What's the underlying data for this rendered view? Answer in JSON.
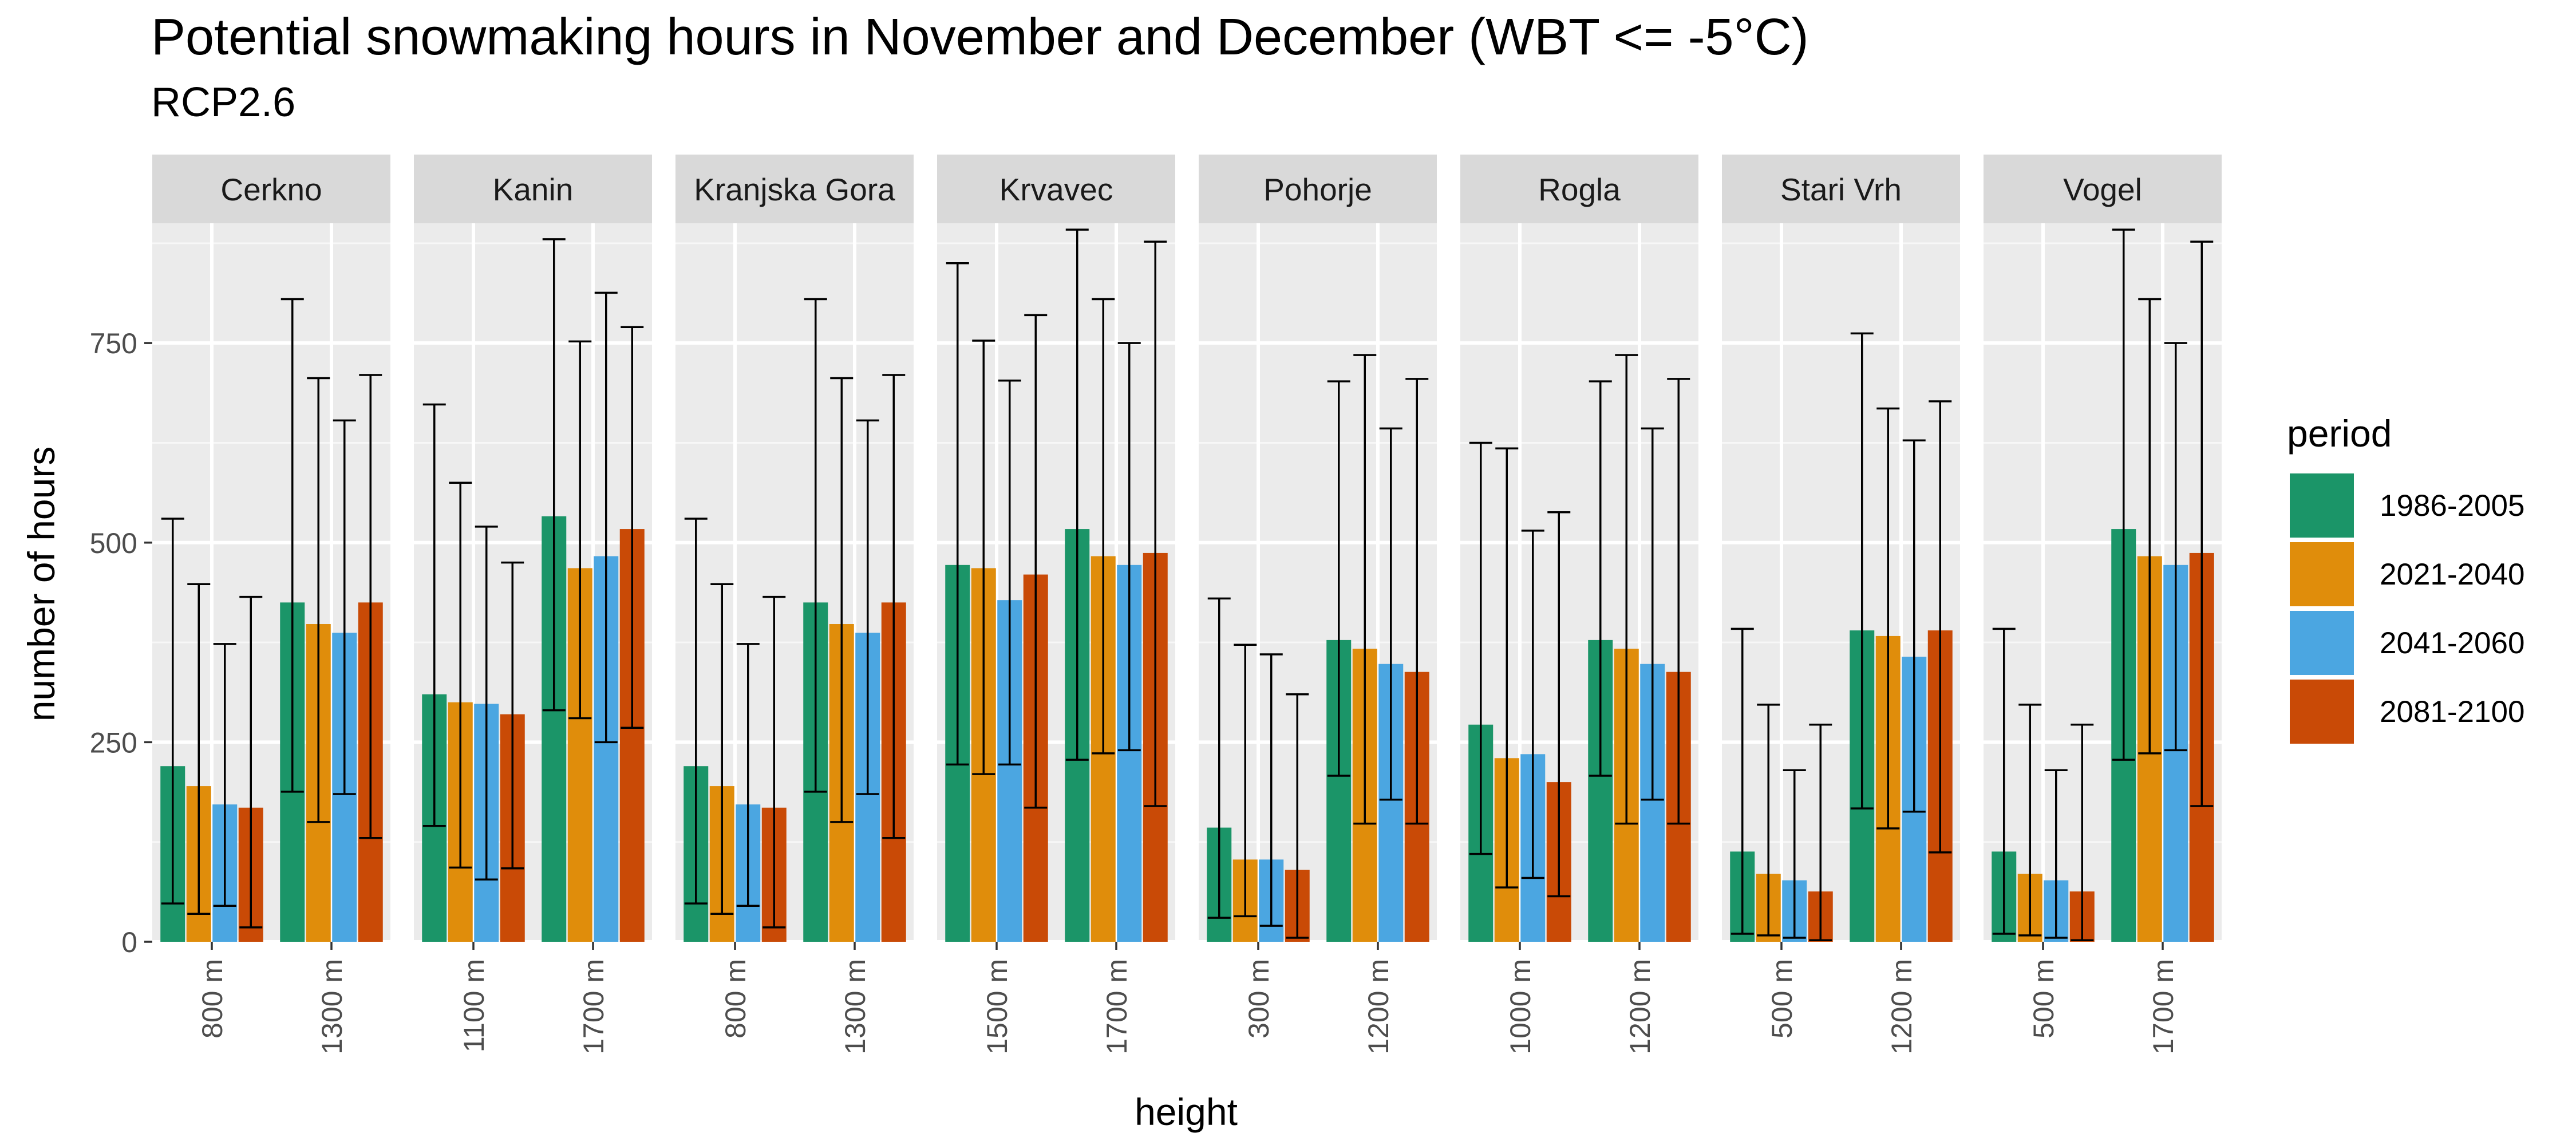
{
  "chart_data": {
    "type": "bar",
    "title": "Potential snowmaking hours in November and December (WBT <= -5°C)",
    "subtitle": "RCP2.6",
    "xlabel": "height",
    "ylabel": "number of hours",
    "ylim": [
      0,
      900
    ],
    "yticks": [
      0,
      250,
      500,
      750
    ],
    "grid": true,
    "legend": {
      "title": "period",
      "position": "right",
      "entries": [
        {
          "label": "1986-2005",
          "color": "#1B9568"
        },
        {
          "label": "2021-2040",
          "color": "#E08D0B"
        },
        {
          "label": "2041-2060",
          "color": "#4BA6E1"
        },
        {
          "label": "2081-2100",
          "color": "#C94A06"
        }
      ]
    },
    "facets": [
      {
        "name": "Cerkno",
        "groups": [
          {
            "height": "800 m",
            "values": [
              220,
              195,
              172,
              168
            ],
            "errors": [
              [
                48,
                530
              ],
              [
                35,
                448
              ],
              [
                45,
                373
              ],
              [
                18,
                432
              ]
            ]
          },
          {
            "height": "1300 m",
            "values": [
              425,
              398,
              387,
              425
            ],
            "errors": [
              [
                188,
                805
              ],
              [
                150,
                706
              ],
              [
                185,
                653
              ],
              [
                130,
                710
              ]
            ]
          }
        ]
      },
      {
        "name": "Kanin",
        "groups": [
          {
            "height": "1100 m",
            "values": [
              310,
              300,
              298,
              285
            ],
            "errors": [
              [
                145,
                673
              ],
              [
                93,
                575
              ],
              [
                78,
                520
              ],
              [
                92,
                475
              ]
            ]
          },
          {
            "height": "1700 m",
            "values": [
              533,
              468,
              483,
              517
            ],
            "errors": [
              [
                290,
                880
              ],
              [
                280,
                752
              ],
              [
                250,
                813
              ],
              [
                268,
                770
              ]
            ]
          }
        ]
      },
      {
        "name": "Kranjska Gora",
        "groups": [
          {
            "height": "800 m",
            "values": [
              220,
              195,
              172,
              168
            ],
            "errors": [
              [
                48,
                530
              ],
              [
                35,
                448
              ],
              [
                45,
                373
              ],
              [
                18,
                432
              ]
            ]
          },
          {
            "height": "1300 m",
            "values": [
              425,
              398,
              387,
              425
            ],
            "errors": [
              [
                188,
                805
              ],
              [
                150,
                706
              ],
              [
                185,
                653
              ],
              [
                130,
                710
              ]
            ]
          }
        ]
      },
      {
        "name": "Krvavec",
        "groups": [
          {
            "height": "1500 m",
            "values": [
              472,
              468,
              428,
              460
            ],
            "errors": [
              [
                222,
                850
              ],
              [
                210,
                753
              ],
              [
                222,
                703
              ],
              [
                168,
                785
              ]
            ]
          },
          {
            "height": "1700 m",
            "values": [
              517,
              483,
              472,
              487
            ],
            "errors": [
              [
                228,
                892
              ],
              [
                236,
                805
              ],
              [
                240,
                750
              ],
              [
                170,
                877
              ]
            ]
          }
        ]
      },
      {
        "name": "Pohorje",
        "groups": [
          {
            "height": "300 m",
            "values": [
              143,
              103,
              103,
              90
            ],
            "errors": [
              [
                30,
                430
              ],
              [
                32,
                372
              ],
              [
                20,
                360
              ],
              [
                5,
                310
              ]
            ]
          },
          {
            "height": "1200 m",
            "values": [
              378,
              367,
              348,
              338
            ],
            "errors": [
              [
                208,
                702
              ],
              [
                148,
                735
              ],
              [
                178,
                643
              ],
              [
                148,
                705
              ]
            ]
          }
        ]
      },
      {
        "name": "Rogla",
        "groups": [
          {
            "height": "1000 m",
            "values": [
              272,
              230,
              235,
              200
            ],
            "errors": [
              [
                110,
                625
              ],
              [
                68,
                618
              ],
              [
                80,
                515
              ],
              [
                57,
                538
              ]
            ]
          },
          {
            "height": "1200 m",
            "values": [
              378,
              367,
              348,
              338
            ],
            "errors": [
              [
                208,
                702
              ],
              [
                148,
                735
              ],
              [
                178,
                643
              ],
              [
                148,
                705
              ]
            ]
          }
        ]
      },
      {
        "name": "Stari Vrh",
        "groups": [
          {
            "height": "500 m",
            "values": [
              113,
              85,
              77,
              63
            ],
            "errors": [
              [
                10,
                392
              ],
              [
                8,
                297
              ],
              [
                5,
                215
              ],
              [
                2,
                272
              ]
            ]
          },
          {
            "height": "1200 m",
            "values": [
              390,
              383,
              357,
              390
            ],
            "errors": [
              [
                167,
                762
              ],
              [
                142,
                668
              ],
              [
                163,
                628
              ],
              [
                112,
                677
              ]
            ]
          }
        ]
      },
      {
        "name": "Vogel",
        "groups": [
          {
            "height": "500 m",
            "values": [
              113,
              85,
              77,
              63
            ],
            "errors": [
              [
                10,
                392
              ],
              [
                8,
                297
              ],
              [
                5,
                215
              ],
              [
                2,
                272
              ]
            ]
          },
          {
            "height": "1700 m",
            "values": [
              517,
              483,
              472,
              487
            ],
            "errors": [
              [
                228,
                892
              ],
              [
                236,
                805
              ],
              [
                240,
                750
              ],
              [
                170,
                877
              ]
            ]
          }
        ]
      }
    ]
  }
}
